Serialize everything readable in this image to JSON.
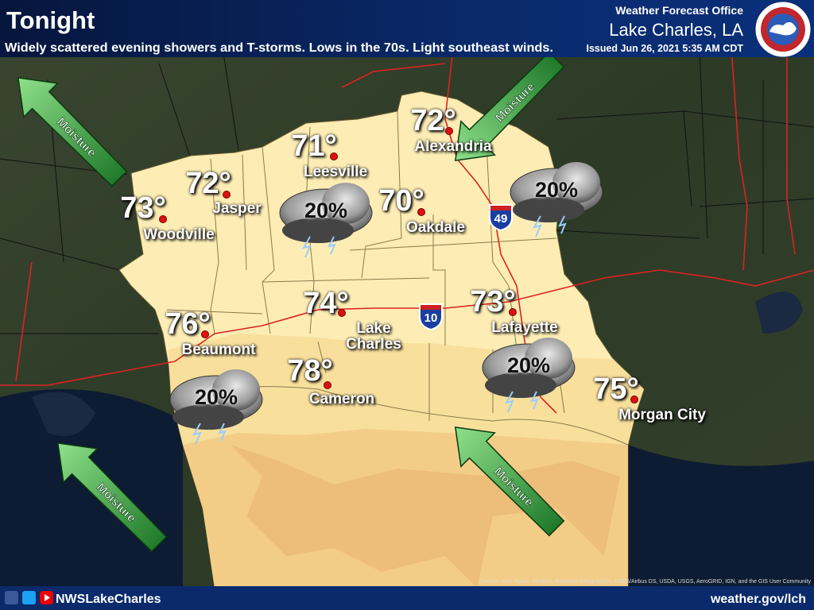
{
  "header": {
    "title": "Tonight",
    "subtitle": "Widely scattered evening showers and T-storms. Lows in the 70s. Light southeast winds.",
    "office_label": "Weather Forecast Office",
    "office": "Lake Charles, LA",
    "issued": "Issued Jun 26, 2021 5:35 AM CDT",
    "logo_text": "NATIONAL WEATHER SERVICE"
  },
  "cities": [
    {
      "name": "Woodville",
      "temp": "73°"
    },
    {
      "name": "Jasper",
      "temp": "72°"
    },
    {
      "name": "Leesville",
      "temp": "71°"
    },
    {
      "name": "Alexandria",
      "temp": "72°"
    },
    {
      "name": "Oakdale",
      "temp": "70°"
    },
    {
      "name": "Beaumont",
      "temp": "76°"
    },
    {
      "name": "Lake Charles",
      "temp": "74°"
    },
    {
      "name": "Lafayette",
      "temp": "73°"
    },
    {
      "name": "Cameron",
      "temp": "78°"
    },
    {
      "name": "Morgan City",
      "temp": "75°"
    }
  ],
  "rain_chances": [
    "20%",
    "20%",
    "20%",
    "20%"
  ],
  "moisture_arrows": [
    "Moisture",
    "Moisture",
    "Moisture",
    "Moisture"
  ],
  "highways": [
    "49",
    "10"
  ],
  "attribution": "Source: Esri, Maxar, GeoEye, Earthstar Geographics, CNES/Airbus DS, USDA, USGS, AeroGRID, IGN, and the GIS User Community",
  "footer": {
    "social": "NWSLakeCharles",
    "website": "weather.gov/lch"
  }
}
